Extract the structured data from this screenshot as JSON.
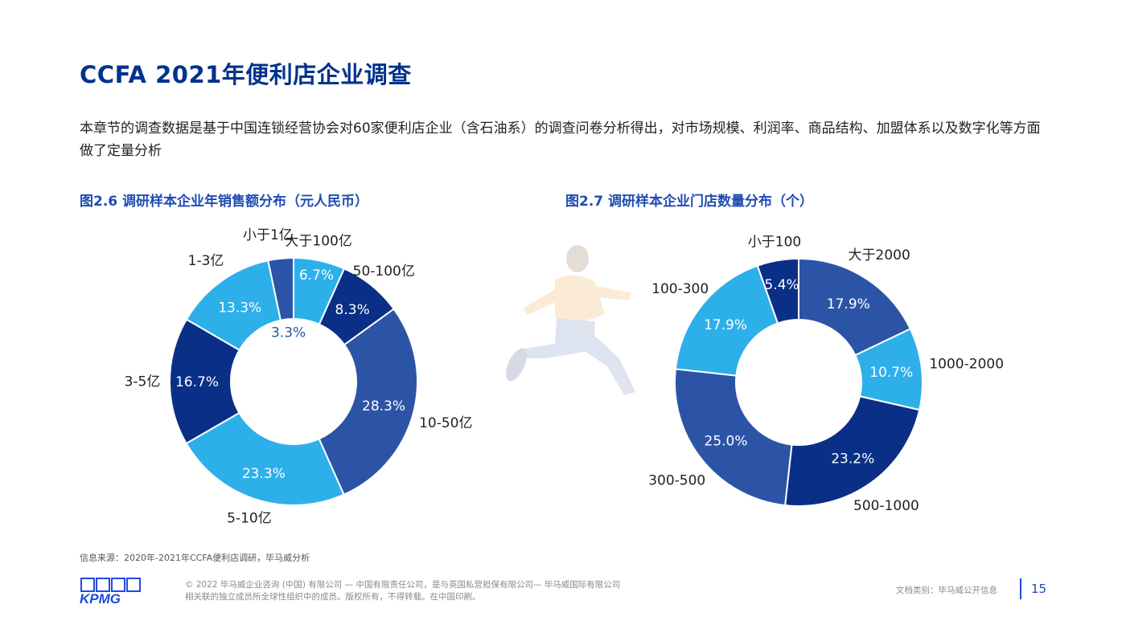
{
  "header": {
    "title": "CCFA 2021年便利店企业调查"
  },
  "intro": {
    "text": "本章节的调查数据是基于中国连锁经营协会对60家便利店企业（含石油系）的调查问卷分析得出，对市场规模、利润率、商品结构、加盟体系以及数字化等方面做了定量分析"
  },
  "chart_data": [
    {
      "type": "pie",
      "title": "图2.6 调研样本企业年销售额分布（元人民币）",
      "categories": [
        "大于100亿",
        "50-100亿",
        "10-50亿",
        "5-10亿",
        "3-5亿",
        "1-3亿",
        "小于1亿"
      ],
      "values": [
        6.7,
        8.3,
        28.3,
        23.3,
        16.7,
        13.3,
        3.3
      ],
      "value_labels": [
        "6.7%",
        "8.3%",
        "28.3%",
        "23.3%",
        "16.7%",
        "13.3%",
        "3.3%"
      ],
      "colors": [
        "#2DB0EA",
        "#0A2F86",
        "#2C54A6",
        "#2DB0EA",
        "#0A2F86",
        "#2DB0EA",
        "#2C54A6"
      ],
      "legend": "none"
    },
    {
      "type": "pie",
      "title": "图2.7 调研样本企业门店数量分布（个）",
      "categories": [
        "大于2000",
        "1000-2000",
        "500-1000",
        "300-500",
        "100-300",
        "小于100"
      ],
      "values": [
        17.9,
        10.7,
        23.2,
        25.0,
        17.9,
        5.4
      ],
      "value_labels": [
        "17.9%",
        "10.7%",
        "23.2%",
        "25.0%",
        "17.9%",
        "5.4%"
      ],
      "colors": [
        "#2C54A6",
        "#2DB0EA",
        "#0A2F86",
        "#2C54A6",
        "#2DB0EA",
        "#0A2F86"
      ],
      "legend": "none"
    }
  ],
  "source": {
    "text": "信息来源：2020年-2021年CCFA便利店调研，毕马威分析"
  },
  "footer": {
    "logo_text": "KPMG",
    "line1": "© 2022 毕马威企业咨询 (中国) 有限公司 — 中国有限责任公司，是与英国私营担保有限公司— 毕马威国际有限公司",
    "line2": "相关联的独立成员所全球性组织中的成员。版权所有，不得转载。在中国印刷。",
    "doc_type": "文档类别：毕马威公开信息",
    "page_number": "15"
  }
}
